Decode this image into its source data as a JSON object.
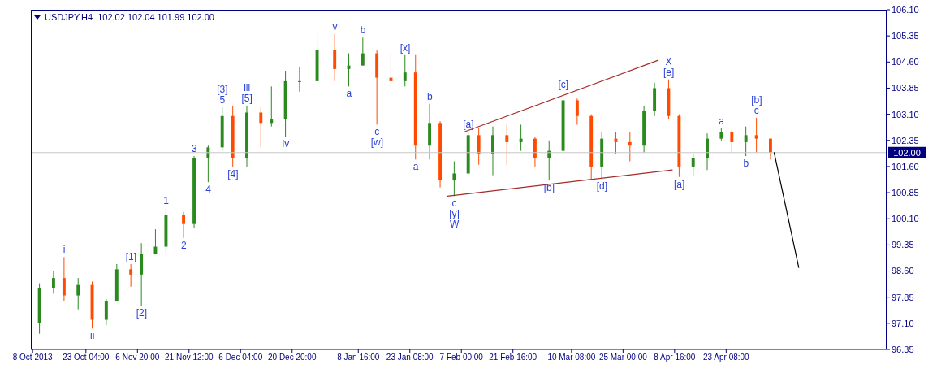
{
  "chart_data": {
    "type": "candlestick",
    "title": "USDJPY,H4  102.02 102.04 101.99 102.00",
    "x": [
      "2013-10-10",
      "2013-10-14",
      "2013-10-17",
      "2013-10-21",
      "2013-10-25",
      "2013-10-29",
      "2013-11-01",
      "2013-11-05",
      "2013-11-08",
      "2013-11-12",
      "2013-11-15",
      "2013-11-20",
      "2013-11-23",
      "2013-11-27",
      "2013-12-01",
      "2013-12-04",
      "2013-12-08",
      "2013-12-12",
      "2013-12-15",
      "2013-12-19",
      "2013-12-23",
      "2013-12-28",
      "2014-01-02",
      "2014-01-06",
      "2014-01-10",
      "2014-01-14",
      "2014-01-18",
      "2014-01-22",
      "2014-01-25",
      "2014-01-29",
      "2014-02-01",
      "2014-02-05",
      "2014-02-09",
      "2014-02-12",
      "2014-02-16",
      "2014-02-20",
      "2014-02-24",
      "2014-02-28",
      "2014-03-04",
      "2014-03-08",
      "2014-03-12",
      "2014-03-16",
      "2014-03-19",
      "2014-03-23",
      "2014-03-27",
      "2014-03-31",
      "2014-04-03",
      "2014-04-07",
      "2014-04-10",
      "2014-04-14",
      "2014-04-18",
      "2014-04-22",
      "2014-04-25",
      "2014-04-29",
      "2014-05-02",
      "2014-05-06"
    ],
    "ohlc": [
      [
        97.1,
        98.25,
        96.8,
        98.1
      ],
      [
        98.1,
        98.6,
        97.95,
        98.4
      ],
      [
        98.4,
        99.0,
        97.75,
        97.9
      ],
      [
        97.9,
        98.4,
        97.5,
        98.2
      ],
      [
        98.2,
        98.3,
        96.95,
        97.2
      ],
      [
        97.2,
        97.8,
        97.05,
        97.75
      ],
      [
        97.75,
        98.8,
        97.75,
        98.65
      ],
      [
        98.65,
        98.8,
        98.15,
        98.5
      ],
      [
        98.5,
        99.4,
        97.6,
        99.1
      ],
      [
        99.1,
        99.8,
        99.1,
        99.3
      ],
      [
        99.3,
        100.4,
        99.1,
        100.2
      ],
      [
        100.2,
        100.3,
        99.55,
        99.95
      ],
      [
        99.95,
        101.9,
        99.85,
        101.85
      ],
      [
        101.85,
        102.2,
        101.15,
        102.15
      ],
      [
        102.15,
        103.3,
        102.05,
        103.05
      ],
      [
        103.05,
        103.35,
        101.6,
        101.85
      ],
      [
        101.85,
        103.35,
        101.6,
        103.15
      ],
      [
        103.15,
        103.3,
        102.15,
        102.85
      ],
      [
        102.85,
        103.9,
        102.75,
        102.95
      ],
      [
        102.95,
        104.35,
        102.45,
        104.05
      ],
      [
        104.05,
        104.45,
        103.75,
        104.05
      ],
      [
        104.05,
        105.4,
        104.0,
        104.95
      ],
      [
        104.95,
        105.4,
        104.05,
        104.4
      ],
      [
        104.4,
        104.85,
        103.9,
        104.5
      ],
      [
        104.5,
        105.3,
        104.5,
        104.85
      ],
      [
        104.85,
        104.95,
        102.8,
        104.15
      ],
      [
        104.15,
        104.9,
        103.85,
        104.05
      ],
      [
        104.05,
        104.8,
        103.9,
        104.3
      ],
      [
        104.3,
        104.8,
        101.8,
        102.2
      ],
      [
        102.2,
        103.4,
        101.8,
        102.85
      ],
      [
        102.85,
        102.9,
        101.0,
        101.2
      ],
      [
        101.2,
        101.75,
        100.75,
        101.4
      ],
      [
        101.4,
        102.6,
        101.4,
        102.5
      ],
      [
        102.5,
        102.7,
        101.65,
        101.95
      ],
      [
        101.95,
        102.75,
        101.35,
        102.5
      ],
      [
        102.5,
        102.8,
        101.65,
        102.3
      ],
      [
        102.3,
        102.8,
        102.05,
        102.4
      ],
      [
        102.4,
        102.45,
        101.6,
        101.85
      ],
      [
        101.85,
        102.35,
        101.2,
        102.05
      ],
      [
        102.05,
        103.75,
        102.0,
        103.5
      ],
      [
        103.5,
        103.55,
        102.8,
        103.05
      ],
      [
        103.05,
        103.1,
        101.2,
        101.6
      ],
      [
        101.6,
        102.6,
        101.25,
        102.4
      ],
      [
        102.4,
        102.6,
        101.95,
        102.3
      ],
      [
        102.3,
        102.6,
        101.75,
        102.2
      ],
      [
        102.2,
        103.35,
        102.0,
        103.2
      ],
      [
        103.2,
        104.0,
        103.05,
        103.85
      ],
      [
        103.85,
        104.1,
        102.95,
        103.05
      ],
      [
        103.05,
        103.1,
        101.3,
        101.6
      ],
      [
        101.6,
        101.95,
        101.35,
        101.85
      ],
      [
        101.85,
        102.55,
        101.5,
        102.4
      ],
      [
        102.4,
        102.7,
        102.35,
        102.6
      ],
      [
        102.6,
        102.65,
        102.0,
        102.3
      ],
      [
        102.3,
        102.75,
        101.9,
        102.5
      ],
      [
        102.5,
        103.0,
        102.0,
        102.4
      ],
      [
        102.4,
        102.4,
        101.8,
        102.0
      ]
    ],
    "series": [
      {
        "type": "line",
        "color": "#a52a2a",
        "x": [
          "2014-02-03",
          "2014-04-08"
        ],
        "values": [
          100.75,
          101.5
        ]
      },
      {
        "type": "line",
        "color": "#a52a2a",
        "x": [
          "2014-02-08",
          "2014-04-04"
        ],
        "values": [
          102.6,
          104.65
        ]
      },
      {
        "type": "line",
        "color": "#000000",
        "x": [
          "2014-05-07",
          "2014-05-14"
        ],
        "values": [
          102.0,
          98.7
        ]
      }
    ],
    "xlim": [
      "2013-10-07T12:00",
      "2014-06-08"
    ],
    "xticks": [
      {
        "value": "2013-10-08",
        "label": "8 Oct 2013"
      },
      {
        "value": "2013-10-23T04:00",
        "label": "23 Oct 04:00"
      },
      {
        "value": "2013-11-06T20:00",
        "label": "6 Nov 20:00"
      },
      {
        "value": "2013-11-21T12:00",
        "label": "21 Nov 12:00"
      },
      {
        "value": "2013-12-06T04:00",
        "label": "6 Dec 04:00"
      },
      {
        "value": "2013-12-20T20:00",
        "label": "20 Dec 20:00"
      },
      {
        "value": "2014-01-08T16:00",
        "label": "8 Jan 16:00"
      },
      {
        "value": "2014-01-23T08:00",
        "label": "23 Jan 08:00"
      },
      {
        "value": "2014-02-07T00:00",
        "label": "7 Feb 00:00"
      },
      {
        "value": "2014-02-21T16:00",
        "label": "21 Feb 16:00"
      },
      {
        "value": "2014-03-10T08:00",
        "label": "10 Mar 08:00"
      },
      {
        "value": "2014-03-25T00:00",
        "label": "25 Mar 00:00"
      },
      {
        "value": "2014-04-08T16:00",
        "label": "8 Apr 16:00"
      },
      {
        "value": "2014-04-23T08:00",
        "label": "23 Apr 08:00"
      }
    ],
    "ylim": [
      96.35,
      106.1
    ],
    "yticks": [
      {
        "value": 96.35,
        "label": "96.35"
      },
      {
        "value": 97.1,
        "label": "97.10"
      },
      {
        "value": 97.85,
        "label": "97.85"
      },
      {
        "value": 98.6,
        "label": "98.60"
      },
      {
        "value": 99.35,
        "label": "99.35"
      },
      {
        "value": 100.1,
        "label": "100.10"
      },
      {
        "value": 100.85,
        "label": "100.85"
      },
      {
        "value": 101.6,
        "label": "101.60"
      },
      {
        "value": 102.35,
        "label": "102.35"
      },
      {
        "value": 103.1,
        "label": "103.10"
      },
      {
        "value": 103.85,
        "label": "103.85"
      },
      {
        "value": 104.6,
        "label": "104.60"
      },
      {
        "value": 105.35,
        "label": "105.35"
      },
      {
        "value": 106.1,
        "label": "106.10"
      }
    ],
    "ref_lines": [
      {
        "axis": "y",
        "value": 102.0,
        "label": "102.00",
        "color": "#c8c8c8"
      }
    ],
    "annotations": [
      {
        "text": "i",
        "x": "2013-10-17",
        "y": 99.0
      },
      {
        "text": "ii",
        "x": "2013-10-25",
        "y": 96.95
      },
      {
        "text": "[1]",
        "x": "2013-11-05",
        "y": 98.8
      },
      {
        "text": "[2]",
        "x": "2013-11-08",
        "y": 97.6
      },
      {
        "text": "1",
        "x": "2013-11-15",
        "y": 100.4
      },
      {
        "text": "2",
        "x": "2013-11-20",
        "y": 99.55
      },
      {
        "text": "3",
        "x": "2013-11-23",
        "y": 101.9
      },
      {
        "text": "4",
        "x": "2013-11-27",
        "y": 101.15
      },
      {
        "text": "5",
        "x": "2013-12-01",
        "y": 103.3
      },
      {
        "text": "[3]",
        "x": "2013-12-01",
        "y": 103.3
      },
      {
        "text": "[4]",
        "x": "2013-12-04",
        "y": 101.6
      },
      {
        "text": "[5]",
        "x": "2013-12-08",
        "y": 103.35
      },
      {
        "text": "iii",
        "x": "2013-12-08",
        "y": 103.35
      },
      {
        "text": "iv",
        "x": "2013-12-19",
        "y": 102.45
      },
      {
        "text": "v",
        "x": "2014-01-02",
        "y": 105.4
      },
      {
        "text": "a",
        "x": "2014-01-06",
        "y": 103.9
      },
      {
        "text": "b",
        "x": "2014-01-10",
        "y": 105.3
      },
      {
        "text": "c",
        "x": "2014-01-14",
        "y": 102.8
      },
      {
        "text": "[w]",
        "x": "2014-01-14",
        "y": 102.8
      },
      {
        "text": "[x]",
        "x": "2014-01-22",
        "y": 104.8
      },
      {
        "text": "a",
        "x": "2014-01-25",
        "y": 101.8
      },
      {
        "text": "b",
        "x": "2014-01-29",
        "y": 103.4
      },
      {
        "text": "c",
        "x": "2014-02-05",
        "y": 100.75
      },
      {
        "text": "[y]",
        "x": "2014-02-05",
        "y": 100.75
      },
      {
        "text": "W",
        "x": "2014-02-05",
        "y": 100.75
      },
      {
        "text": "[a]",
        "x": "2014-02-09",
        "y": 102.6
      },
      {
        "text": "[b]",
        "x": "2014-03-04",
        "y": 101.2
      },
      {
        "text": "[c]",
        "x": "2014-03-08",
        "y": 103.75
      },
      {
        "text": "[d]",
        "x": "2014-03-19",
        "y": 101.25
      },
      {
        "text": "[e]",
        "x": "2014-04-07",
        "y": 104.1
      },
      {
        "text": "X",
        "x": "2014-04-07",
        "y": 104.1
      },
      {
        "text": "[a]",
        "x": "2014-04-10",
        "y": 101.3
      },
      {
        "text": "a",
        "x": "2014-04-22",
        "y": 102.7
      },
      {
        "text": "b",
        "x": "2014-04-29",
        "y": 101.9
      },
      {
        "text": "c",
        "x": "2014-05-02",
        "y": 103.0
      },
      {
        "text": "[b]",
        "x": "2014-05-02",
        "y": 103.0
      }
    ]
  }
}
